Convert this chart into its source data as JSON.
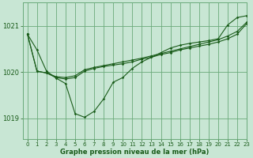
{
  "background_color": "#c8e6d4",
  "grid_color": "#6aaa7a",
  "line_color": "#1a5c1a",
  "title": "Graphe pression niveau de la mer (hPa)",
  "xlim": [
    -0.5,
    23
  ],
  "ylim": [
    1018.55,
    1021.5
  ],
  "yticks": [
    1019,
    1020,
    1021
  ],
  "xticks": [
    0,
    1,
    2,
    3,
    4,
    5,
    6,
    7,
    8,
    9,
    10,
    11,
    12,
    13,
    14,
    15,
    16,
    17,
    18,
    19,
    20,
    21,
    22,
    23
  ],
  "series": [
    [
      1020.82,
      1020.48,
      1020.02,
      1019.87,
      1019.75,
      1019.1,
      1019.02,
      1019.15,
      1019.42,
      1019.78,
      1019.88,
      1020.08,
      1020.22,
      1020.32,
      1020.42,
      1020.52,
      1020.58,
      1020.62,
      1020.65,
      1020.68,
      1020.72,
      1021.02,
      1021.18,
      1021.22
    ],
    [
      1020.82,
      1020.02,
      1019.98,
      1019.88,
      1019.85,
      1019.88,
      1020.02,
      1020.08,
      1020.12,
      1020.15,
      1020.18,
      1020.22,
      1020.28,
      1020.32,
      1020.38,
      1020.42,
      1020.48,
      1020.52,
      1020.56,
      1020.6,
      1020.65,
      1020.72,
      1020.82,
      1021.05
    ],
    [
      1020.82,
      1020.02,
      1019.98,
      1019.9,
      1019.88,
      1019.92,
      1020.05,
      1020.1,
      1020.14,
      1020.18,
      1020.22,
      1020.26,
      1020.3,
      1020.35,
      1020.4,
      1020.45,
      1020.5,
      1020.55,
      1020.6,
      1020.65,
      1020.7,
      1020.78,
      1020.88,
      1021.08
    ]
  ]
}
